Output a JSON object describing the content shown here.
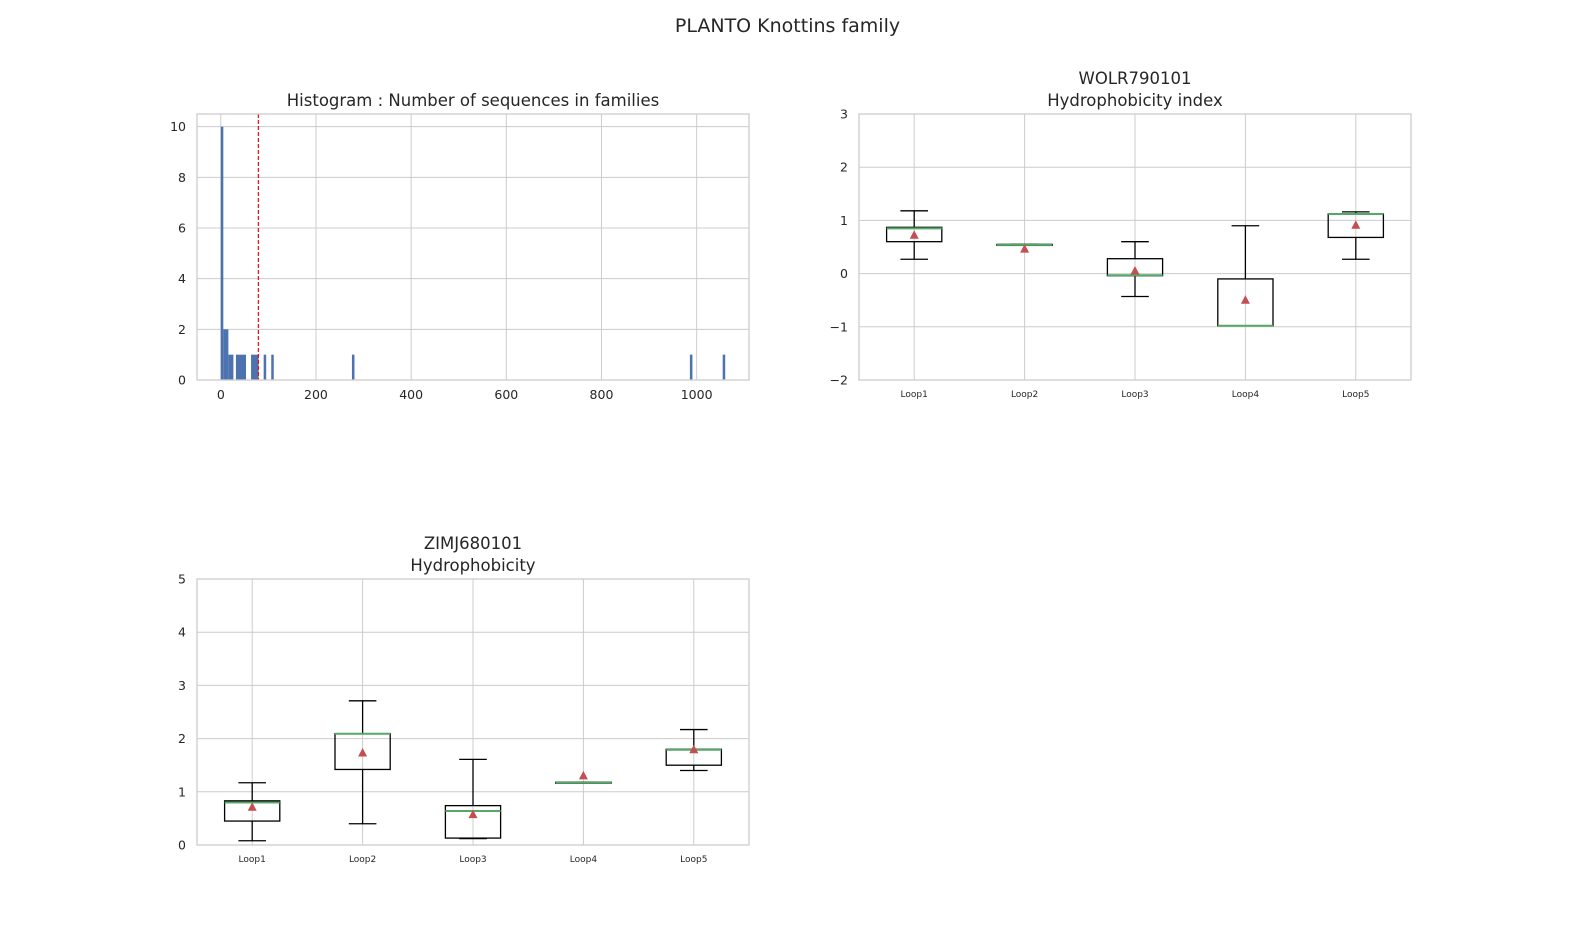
{
  "figure": {
    "suptitle": "PLANTO Knottins family"
  },
  "chart_data": [
    {
      "id": "histogram",
      "type": "bar",
      "title": "Histogram : Number of sequences in families",
      "xlabel": "",
      "ylabel": "",
      "xlim": [
        -50,
        1110
      ],
      "ylim": [
        0,
        10.5
      ],
      "xticks": [
        0,
        200,
        400,
        600,
        800,
        1000
      ],
      "yticks": [
        0,
        2,
        4,
        6,
        8,
        10
      ],
      "grid": true,
      "bar_color": "#4c72b0",
      "reference_line": {
        "x": 79,
        "style": "dashed",
        "color": "#e41a1c"
      },
      "bins": [
        {
          "x0": 0,
          "x1": 5.3,
          "count": 10
        },
        {
          "x0": 5.3,
          "x1": 15.9,
          "count": 2
        },
        {
          "x0": 15.9,
          "x1": 26.5,
          "count": 1
        },
        {
          "x0": 31.8,
          "x1": 53.0,
          "count": 1
        },
        {
          "x0": 63.6,
          "x1": 79.5,
          "count": 1
        },
        {
          "x0": 90.1,
          "x1": 95.4,
          "count": 1
        },
        {
          "x0": 106.0,
          "x1": 111.3,
          "count": 1
        },
        {
          "x0": 275.6,
          "x1": 280.9,
          "count": 1
        },
        {
          "x0": 985.8,
          "x1": 991.1,
          "count": 1
        },
        {
          "x0": 1054.7,
          "x1": 1060.0,
          "count": 1
        }
      ]
    },
    {
      "id": "wolr",
      "type": "box",
      "title": "WOLR790101\nHydrophobicity index",
      "xlabel": "",
      "ylabel": "",
      "ylim": [
        -2,
        3
      ],
      "yticks": [
        -2,
        -1,
        0,
        1,
        2,
        3
      ],
      "grid": true,
      "categories": [
        "Loop1",
        "Loop2",
        "Loop3",
        "Loop4",
        "Loop5"
      ],
      "boxes": [
        {
          "whislo": 0.27,
          "q1": 0.6,
          "med": 0.85,
          "q3": 0.87,
          "whishi": 1.18,
          "mean": 0.72
        },
        {
          "whislo": 0.53,
          "q1": 0.53,
          "med": 0.54,
          "q3": 0.55,
          "whishi": 0.55,
          "mean": 0.46
        },
        {
          "whislo": -0.43,
          "q1": -0.04,
          "med": -0.03,
          "q3": 0.28,
          "whishi": 0.6,
          "mean": 0.05
        },
        {
          "whislo": -0.98,
          "q1": -0.98,
          "med": -0.98,
          "q3": -0.1,
          "whishi": 0.9,
          "mean": -0.5
        },
        {
          "whislo": 0.27,
          "q1": 0.68,
          "med": 1.12,
          "q3": 1.12,
          "whishi": 1.16,
          "mean": 0.91
        }
      ]
    },
    {
      "id": "zimj",
      "type": "box",
      "title": "ZIMJ680101\nHydrophobicity",
      "xlabel": "",
      "ylabel": "",
      "ylim": [
        0,
        5
      ],
      "yticks": [
        0,
        1,
        2,
        3,
        4,
        5
      ],
      "grid": true,
      "categories": [
        "Loop1",
        "Loop2",
        "Loop3",
        "Loop4",
        "Loop5"
      ],
      "boxes": [
        {
          "whislo": 0.08,
          "q1": 0.45,
          "med": 0.8,
          "q3": 0.83,
          "whishi": 1.17,
          "mean": 0.71
        },
        {
          "whislo": 0.4,
          "q1": 1.42,
          "med": 2.09,
          "q3": 2.09,
          "whishi": 2.71,
          "mean": 1.73
        },
        {
          "whislo": 0.12,
          "q1": 0.13,
          "med": 0.64,
          "q3": 0.74,
          "whishi": 1.61,
          "mean": 0.57
        },
        {
          "whislo": 1.17,
          "q1": 1.17,
          "med": 1.17,
          "q3": 1.18,
          "whishi": 1.18,
          "mean": 1.3
        },
        {
          "whislo": 1.4,
          "q1": 1.5,
          "med": 1.79,
          "q3": 1.8,
          "whishi": 2.17,
          "mean": 1.79
        }
      ]
    }
  ],
  "style": {
    "grid_color": "#cccccc",
    "spine_color": "#cccccc",
    "box_color": "#000000",
    "median_color": "#55a868",
    "mean_color": "#c44e52"
  }
}
